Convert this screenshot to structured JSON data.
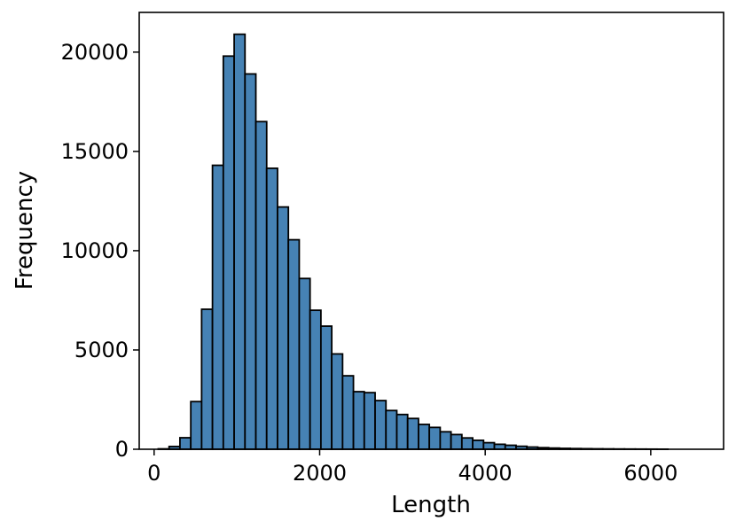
{
  "chart_data": {
    "type": "bar",
    "title": "",
    "xlabel": "Length",
    "ylabel": "Frequency",
    "bar_color": "#4682b4",
    "edge_color": "#000000",
    "xlim": [
      -180,
      6880
    ],
    "ylim": [
      0,
      22000
    ],
    "xticks": [
      0,
      2000,
      4000,
      6000
    ],
    "xtick_labels": [
      "0",
      "2000",
      "4000",
      "6000"
    ],
    "yticks": [
      0,
      5000,
      10000,
      15000,
      20000
    ],
    "ytick_labels": [
      "0",
      "5000",
      "10000",
      "15000",
      "20000"
    ],
    "bin_start": 50,
    "bin_width": 131,
    "values": [
      20,
      140,
      580,
      2400,
      7050,
      14300,
      19800,
      20900,
      18900,
      16500,
      14150,
      12200,
      10550,
      8600,
      7000,
      6200,
      4800,
      3700,
      2900,
      2850,
      2450,
      1950,
      1750,
      1550,
      1250,
      1100,
      880,
      740,
      570,
      450,
      330,
      250,
      200,
      150,
      110,
      80,
      60,
      45,
      35,
      28,
      22,
      18,
      14,
      11,
      9,
      7,
      5
    ]
  }
}
